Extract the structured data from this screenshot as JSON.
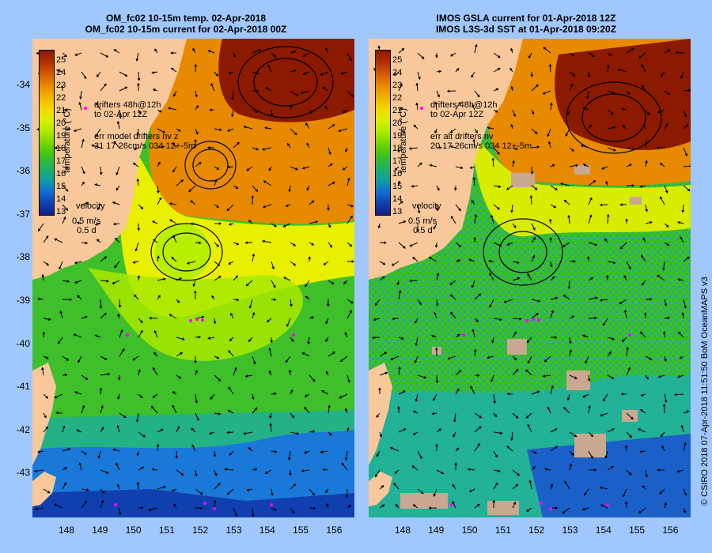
{
  "left_panel": {
    "title_line1": "OM_fc02 10-15m temp. 02-Apr-2018",
    "title_line2": "OM_fc02 10-15m current for 02-Apr-2018 00Z",
    "drifters_line1": "drifters 48h@12h",
    "drifters_line2": "to 02-Apr 12Z",
    "err_line1": "err model drifters nv  z",
    "err_line2": "31 17 26cm/s 034 12+-5m",
    "velocity_label": "velocity",
    "velocity_scale": "0.5 m/s",
    "velocity_time": "0.5 d"
  },
  "right_panel": {
    "title_line1": "IMOS GSLA current for 01-Apr-2018 12Z",
    "title_line2": "IMOS L3S-3d SST at 01-Apr-2018 09:20Z",
    "drifters_line1": "drifters 48h@12h",
    "drifters_line2": "to 02-Apr 12Z",
    "err_line1": "err alt drifters nv",
    "err_line2": "20 17 26cm/s 034 12+-5m",
    "velocity_label": "velocity",
    "velocity_scale": "0.5 m/s",
    "velocity_time": "0.5 d"
  },
  "colorbar": {
    "label": "temperature (°C)",
    "ticks": [
      "25",
      "24",
      "23",
      "22",
      "21",
      "20",
      "19",
      "18",
      "17",
      "16",
      "15",
      "14",
      "13"
    ],
    "colors": [
      "#8b1a00",
      "#b23000",
      "#d35a00",
      "#e88a00",
      "#f0b400",
      "#f5d800",
      "#d8f000",
      "#a8e800",
      "#6fd400",
      "#3cc020",
      "#20b060",
      "#10a0a0",
      "#1070d0",
      "#1040b0",
      "#102080"
    ]
  },
  "y_ticks": [
    "-34",
    "-35",
    "-36",
    "-37",
    "-38",
    "-39",
    "-40",
    "-41",
    "-42",
    "-43"
  ],
  "x_ticks": [
    "148",
    "149",
    "150",
    "151",
    "152",
    "153",
    "154",
    "155",
    "156"
  ],
  "credit": "© CSIRO 2018   07-Apr-2018 11:51:50 BoM OceanMAPS v3",
  "colors": {
    "land": "#f8c89a",
    "warm_core": "#8b1a00",
    "orange": "#e88a00",
    "yellow": "#e8f000",
    "green": "#40c020",
    "teal": "#20b070",
    "blue": "#1070d0",
    "missing": "#c8a890",
    "drifter": "#ff00ff"
  }
}
